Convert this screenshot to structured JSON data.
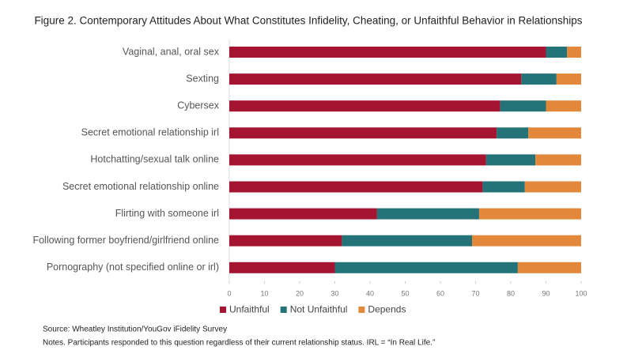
{
  "chart_data": {
    "type": "stacked_barh",
    "title": "Figure 2. Contemporary Attitudes About What Constitutes Infidelity, Cheating, or Unfaithful Behavior in Relationships",
    "categories": [
      "Vaginal, anal, oral sex",
      "Sexting",
      "Cybersex",
      "Secret emotional relationship irl",
      "Hotchatting/sexual talk online",
      "Secret emotional relationship online",
      "Flirting with someone irl",
      "Following former boyfriend/girlfriend online",
      "Pornography (not specified online or irl)"
    ],
    "series": [
      {
        "name": "Unfaithful",
        "color": "#a51431",
        "values": [
          90,
          83,
          77,
          76,
          73,
          72,
          42,
          32,
          30
        ]
      },
      {
        "name": "Not Unfaithful",
        "color": "#237379",
        "values": [
          6,
          10,
          13,
          9,
          14,
          12,
          29,
          37,
          52
        ]
      },
      {
        "name": "Depends",
        "color": "#e3883a",
        "values": [
          4,
          7,
          10,
          15,
          13,
          16,
          29,
          31,
          18
        ]
      }
    ],
    "xlim": [
      0,
      100
    ],
    "xticks": [
      0,
      10,
      20,
      30,
      40,
      50,
      60,
      70,
      80,
      90,
      100
    ],
    "legend": "bottom",
    "source": "Source: Wheatley Institution/YouGov iFidelity Survey",
    "notes": "Notes. Participants responded to this question regardless of their current relationship status.  IRL = “In Real Life.”"
  }
}
